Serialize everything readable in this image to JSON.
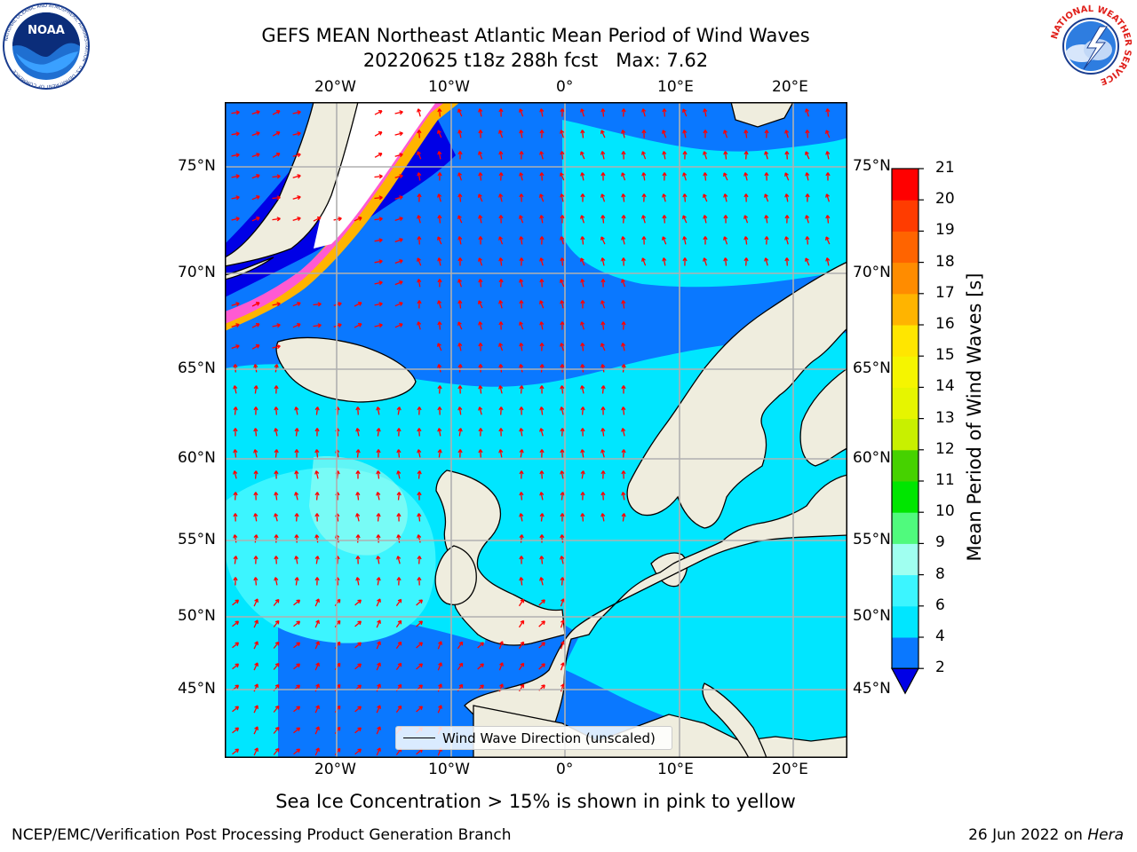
{
  "header": {
    "title_line1": "GEFS MEAN Northeast Atlantic Mean Period of Wind Waves",
    "title_line2": "20220625 t18z 288h fcst   Max: 7.62"
  },
  "logos": {
    "left": {
      "name": "noaa-logo",
      "text": "NOAA",
      "ring_text": "NATIONAL OCEANIC AND ATMOSPHERIC ADMINISTRATION · U.S. DEPARTMENT OF COMMERCE"
    },
    "right": {
      "name": "nws-logo",
      "ring_text": "NATIONAL WEATHER SERVICE"
    }
  },
  "map": {
    "longitude_ticks": [
      "20°W",
      "10°W",
      "0°",
      "10°E",
      "20°E"
    ],
    "latitude_ticks": [
      "75°N",
      "70°N",
      "65°N",
      "60°N",
      "55°N",
      "50°N",
      "45°N"
    ],
    "legend_label": "Wind Wave Direction (unscaled)",
    "colors": {
      "land": "#efedde",
      "ice_free_unknown": "#ffffff",
      "arrows": "#ff0000",
      "grid": "#b0b0b0",
      "coast": "#000000"
    }
  },
  "colorbar": {
    "title": "Mean Period of Wind Waves [s]",
    "tick_labels": [
      "2",
      "4",
      "6",
      "8",
      "9",
      "10",
      "11",
      "12",
      "13",
      "14",
      "15",
      "16",
      "17",
      "18",
      "19",
      "20",
      "21"
    ],
    "bins": [
      {
        "from": 0,
        "to": 2,
        "color": "#0000e6"
      },
      {
        "from": 2,
        "to": 4,
        "color": "#0a78ff"
      },
      {
        "from": 4,
        "to": 6,
        "color": "#00e6ff"
      },
      {
        "from": 6,
        "to": 8,
        "color": "#3cf5ff"
      },
      {
        "from": 8,
        "to": 9,
        "color": "#a0fff0"
      },
      {
        "from": 9,
        "to": 10,
        "color": "#50fa7d"
      },
      {
        "from": 10,
        "to": 11,
        "color": "#00e600"
      },
      {
        "from": 11,
        "to": 12,
        "color": "#46d200"
      },
      {
        "from": 12,
        "to": 13,
        "color": "#c8f000"
      },
      {
        "from": 13,
        "to": 14,
        "color": "#e6f500"
      },
      {
        "from": 14,
        "to": 15,
        "color": "#f5f500"
      },
      {
        "from": 15,
        "to": 16,
        "color": "#ffe600"
      },
      {
        "from": 16,
        "to": 17,
        "color": "#ffb400"
      },
      {
        "from": 17,
        "to": 18,
        "color": "#ff8c00"
      },
      {
        "from": 18,
        "to": 19,
        "color": "#ff6400"
      },
      {
        "from": 19,
        "to": 20,
        "color": "#ff3c00"
      },
      {
        "from": 20,
        "to": 21,
        "color": "#ff0000"
      }
    ]
  },
  "footer": {
    "ice_note": "Sea Ice Concentration > 15% is shown in pink to yellow",
    "left": "NCEP/EMC/Verification Post Processing Product Generation Branch",
    "right_date": "26 Jun 2022 on ",
    "right_host": "Hera"
  }
}
